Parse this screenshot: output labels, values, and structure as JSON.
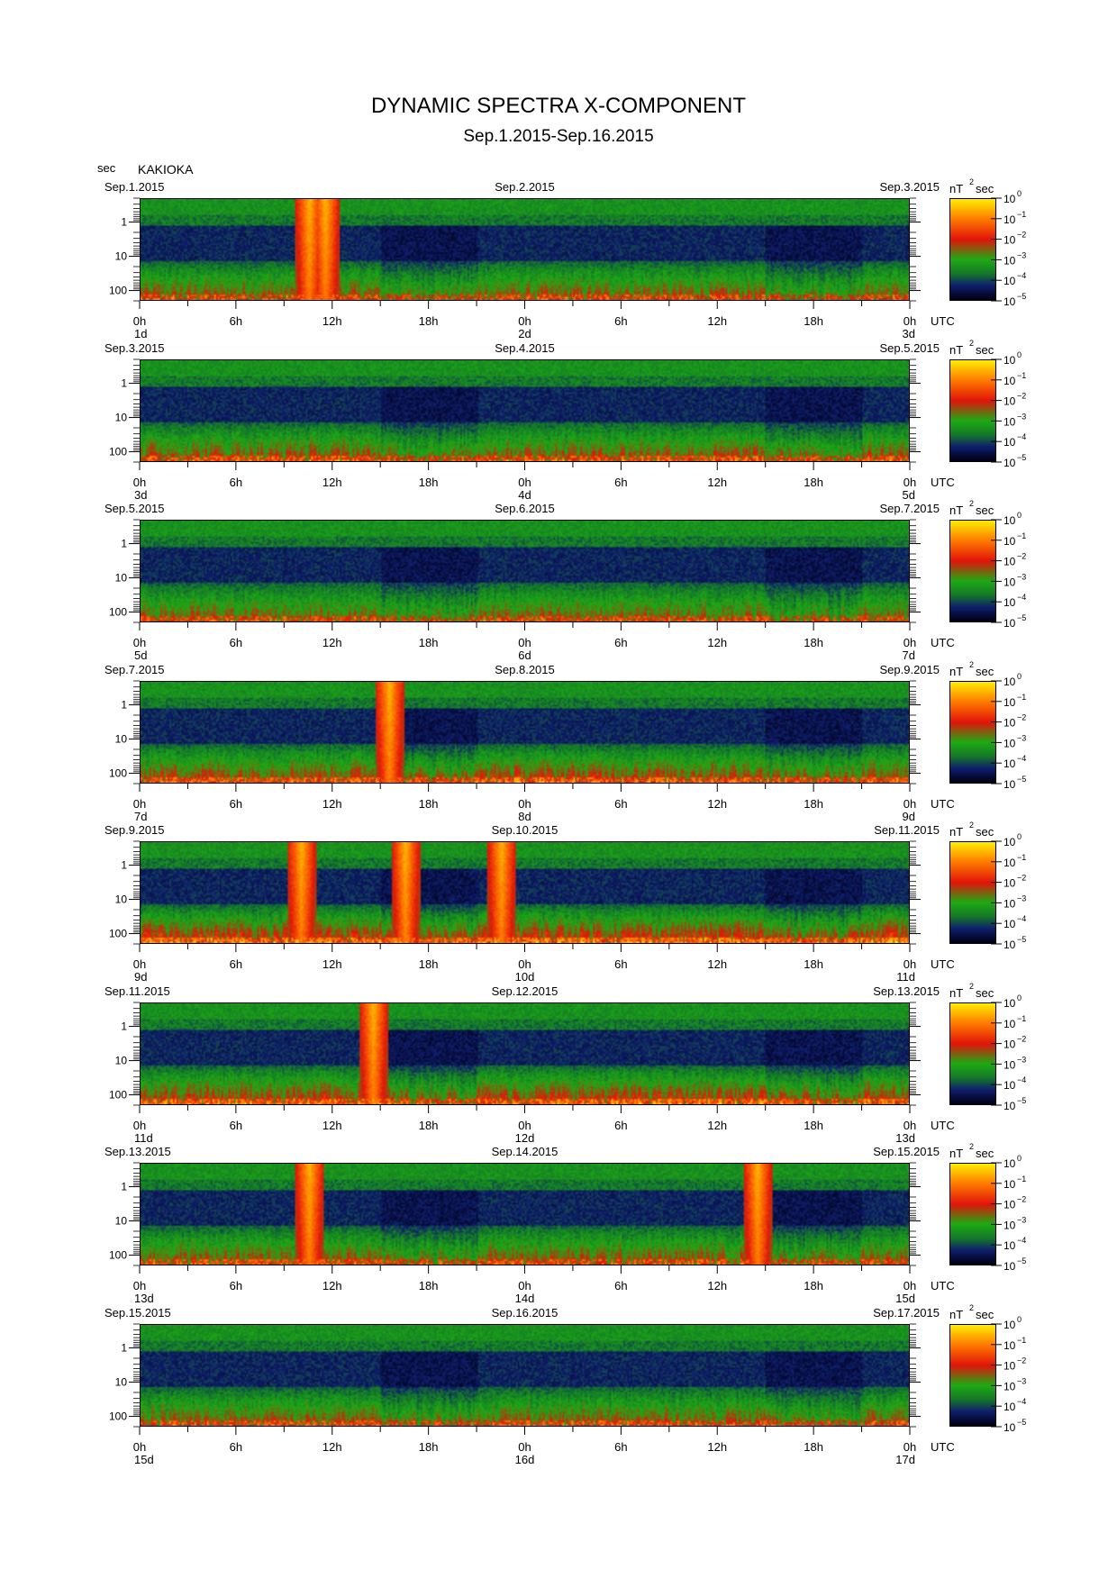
{
  "header": {
    "title": "DYNAMIC SPECTRA X-COMPONENT",
    "subtitle": "Sep.1.2015-Sep.16.2015",
    "unit_label": "sec",
    "station": "KAKIOKA"
  },
  "chart_data": {
    "type": "heatmap",
    "title": "DYNAMIC SPECTRA X-COMPONENT",
    "y_axis": {
      "label": "sec",
      "ticks": [
        "1",
        "10",
        "100"
      ],
      "scale": "log",
      "range": [
        0.2,
        200
      ]
    },
    "x_axis": {
      "ticks": [
        "0h",
        "6h",
        "12h",
        "18h",
        "0h",
        "6h",
        "12h",
        "18h",
        "0h"
      ],
      "suffix": "UTC",
      "range_hours": [
        0,
        48
      ]
    },
    "colorbar": {
      "label": "nT",
      "label_exp": "2",
      "label_suffix": "sec",
      "ticks": [
        "10",
        "10",
        "10",
        "10",
        "10",
        "10"
      ],
      "exponents": [
        "0",
        "−1",
        "−2",
        "−3",
        "−4",
        "−5"
      ],
      "range_log": [
        -5,
        0
      ]
    },
    "colors": {
      "low": "#000020",
      "dark_blue": "#0b1e6e",
      "green": "#10a020",
      "red": "#e81010",
      "yellow": "#ffe600"
    },
    "panels": [
      {
        "date_start": "Sep.1.2015",
        "date_mid": "Sep.2.2015",
        "date_end": "Sep.3.2015",
        "day_start": "1d",
        "day_mid": "2d",
        "day_end": "3d",
        "activity": 0.35,
        "events_hours": [
          10.5,
          11.5
        ]
      },
      {
        "date_start": "Sep.3.2015",
        "date_mid": "Sep.4.2015",
        "date_end": "Sep.5.2015",
        "day_start": "3d",
        "day_mid": "4d",
        "day_end": "5d",
        "activity": 0.45,
        "events_hours": []
      },
      {
        "date_start": "Sep.5.2015",
        "date_mid": "Sep.6.2015",
        "date_end": "Sep.7.2015",
        "day_start": "5d",
        "day_mid": "6d",
        "day_end": "7d",
        "activity": 0.3,
        "events_hours": []
      },
      {
        "date_start": "Sep.7.2015",
        "date_mid": "Sep.8.2015",
        "date_end": "Sep.9.2015",
        "day_start": "7d",
        "day_mid": "8d",
        "day_end": "9d",
        "activity": 0.6,
        "events_hours": [
          15.5
        ]
      },
      {
        "date_start": "Sep.9.2015",
        "date_mid": "Sep.10.2015",
        "date_end": "Sep.11.2015",
        "day_start": "9d",
        "day_mid": "10d",
        "day_end": "11d",
        "activity": 0.75,
        "events_hours": [
          10,
          16.5,
          22.5
        ]
      },
      {
        "date_start": "Sep.11.2015",
        "date_mid": "Sep.12.2015",
        "date_end": "Sep.13.2015",
        "day_start": "11d",
        "day_mid": "12d",
        "day_end": "13d",
        "activity": 0.65,
        "events_hours": [
          14.5
        ]
      },
      {
        "date_start": "Sep.13.2015",
        "date_mid": "Sep.14.2015",
        "date_end": "Sep.15.2015",
        "day_start": "13d",
        "day_mid": "14d",
        "day_end": "15d",
        "activity": 0.4,
        "events_hours": [
          10.5,
          38.5
        ]
      },
      {
        "date_start": "Sep.15.2015",
        "date_mid": "Sep.16.2015",
        "date_end": "Sep.17.2015",
        "day_start": "15d",
        "day_mid": "16d",
        "day_end": "17d",
        "activity": 0.35,
        "events_hours": []
      }
    ]
  }
}
